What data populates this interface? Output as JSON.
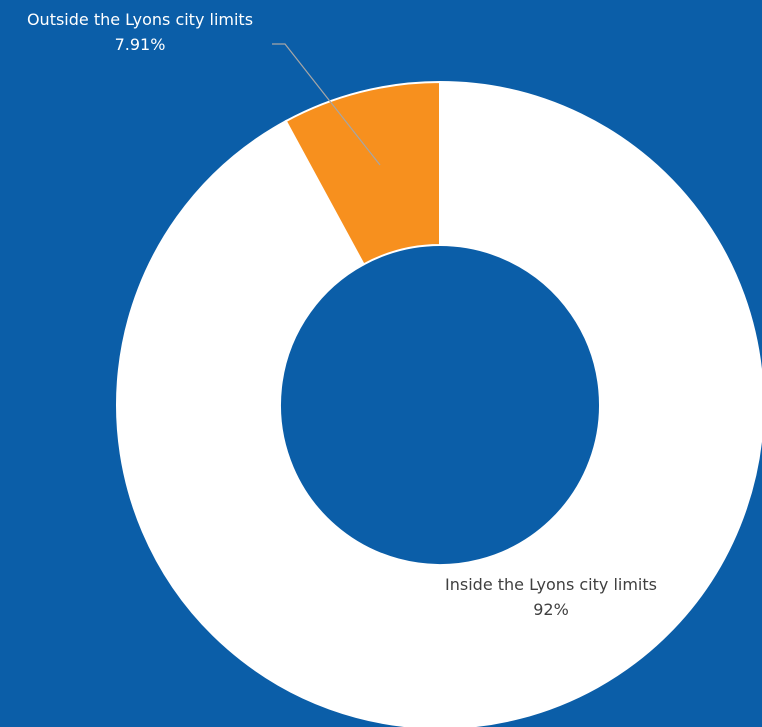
{
  "chart_data": {
    "type": "donut",
    "categories": [
      "Inside the Lyons city limits",
      "Outside the Lyons city limits"
    ],
    "values": [
      92,
      7.91
    ],
    "value_labels": [
      "92%",
      "7.91%"
    ],
    "colors": [
      "#ffffff",
      "#f7901e"
    ]
  }
}
